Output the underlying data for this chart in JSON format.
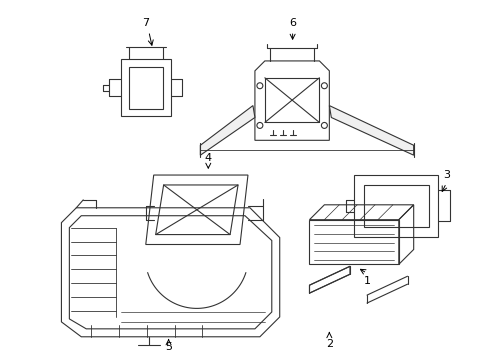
{
  "background_color": "#ffffff",
  "line_color": "#333333",
  "text_color": "#000000",
  "fig_width": 4.89,
  "fig_height": 3.6,
  "dpi": 100
}
